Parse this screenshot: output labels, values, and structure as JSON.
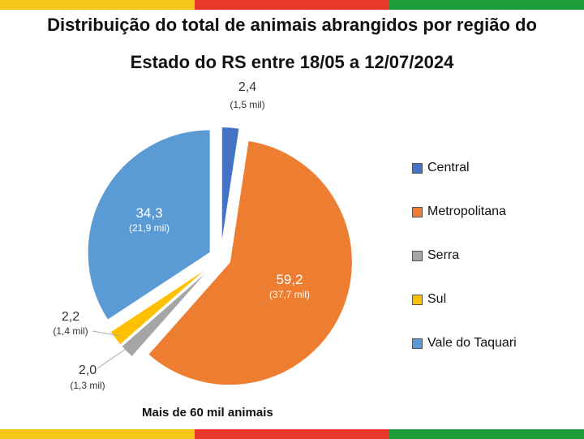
{
  "header": {
    "title_line1": "Distribuição do total de animais abrangidos por região do",
    "title_line2": "Estado do RS entre 18/05 a 12/07/2024"
  },
  "footnote": "Mais de 60 mil animais",
  "colors": {
    "band_yellow": "#f5c518",
    "band_red": "#e8392b",
    "band_green": "#1e9e3a"
  },
  "chart_data": {
    "type": "pie",
    "title": "Distribuição do total de animais abrangidos por região do Estado do RS entre 18/05 a 12/07/2024",
    "legend_position": "right",
    "slices": [
      {
        "name": "Central",
        "value": 2.4,
        "label": "2,4",
        "sublabel": "(1,5 mil)",
        "color": "#4472c4"
      },
      {
        "name": "Metropolitana",
        "value": 59.2,
        "label": "59,2",
        "sublabel": "(37,7 mil)",
        "color": "#ed7d31"
      },
      {
        "name": "Serra",
        "value": 2.0,
        "label": "2,0",
        "sublabel": "(1,3 mil)",
        "color": "#a5a5a5"
      },
      {
        "name": "Sul",
        "value": 2.2,
        "label": "2,2",
        "sublabel": "(1,4 mil)",
        "color": "#ffc000"
      },
      {
        "name": "Vale do Taquari",
        "value": 34.3,
        "label": "34,3",
        "sublabel": "(21,9 mil)",
        "color": "#5b9bd5"
      }
    ]
  }
}
